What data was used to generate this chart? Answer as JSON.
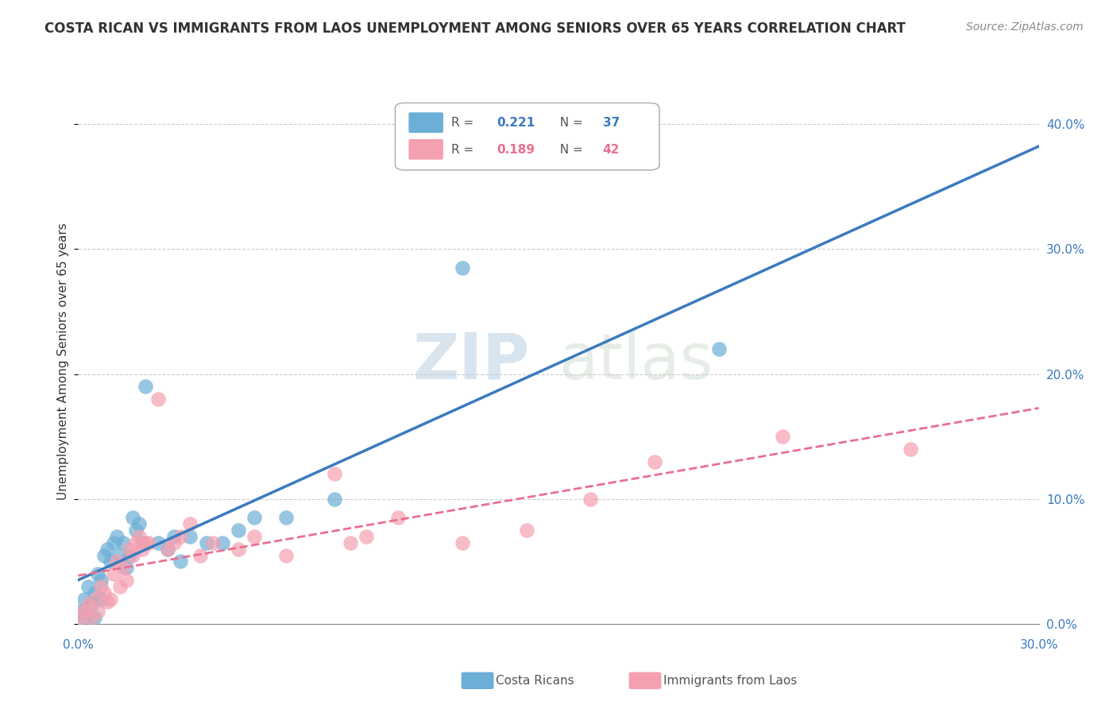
{
  "title": "COSTA RICAN VS IMMIGRANTS FROM LAOS UNEMPLOYMENT AMONG SENIORS OVER 65 YEARS CORRELATION CHART",
  "source": "Source: ZipAtlas.com",
  "ylabel": "Unemployment Among Seniors over 65 years",
  "legend_r1": "R = 0.221",
  "legend_n1": "N = 37",
  "legend_r2": "R = 0.189",
  "legend_n2": "N = 42",
  "color_blue": "#6baed6",
  "color_pink": "#f4a0b0",
  "color_blue_line": "#3a7abf",
  "color_pink_line": "#e87090",
  "watermark_zip": "ZIP",
  "watermark_atlas": "atlas",
  "blue_scatter_x": [
    0.001,
    0.002,
    0.002,
    0.003,
    0.004,
    0.005,
    0.005,
    0.006,
    0.007,
    0.007,
    0.008,
    0.009,
    0.01,
    0.011,
    0.012,
    0.013,
    0.014,
    0.015,
    0.016,
    0.017,
    0.018,
    0.019,
    0.02,
    0.021,
    0.025,
    0.028,
    0.03,
    0.032,
    0.035,
    0.04,
    0.045,
    0.05,
    0.055,
    0.065,
    0.08,
    0.12,
    0.2
  ],
  "blue_scatter_y": [
    0.01,
    0.005,
    0.02,
    0.03,
    0.015,
    0.025,
    0.005,
    0.04,
    0.02,
    0.035,
    0.055,
    0.06,
    0.05,
    0.065,
    0.07,
    0.055,
    0.065,
    0.045,
    0.055,
    0.085,
    0.075,
    0.08,
    0.065,
    0.19,
    0.065,
    0.06,
    0.07,
    0.05,
    0.07,
    0.065,
    0.065,
    0.075,
    0.085,
    0.085,
    0.1,
    0.285,
    0.22
  ],
  "pink_scatter_x": [
    0.001,
    0.002,
    0.003,
    0.004,
    0.005,
    0.006,
    0.007,
    0.008,
    0.009,
    0.01,
    0.011,
    0.012,
    0.013,
    0.014,
    0.015,
    0.016,
    0.017,
    0.018,
    0.019,
    0.02,
    0.021,
    0.022,
    0.025,
    0.028,
    0.03,
    0.032,
    0.035,
    0.038,
    0.042,
    0.05,
    0.055,
    0.065,
    0.08,
    0.085,
    0.09,
    0.1,
    0.12,
    0.14,
    0.16,
    0.18,
    0.22,
    0.26
  ],
  "pink_scatter_y": [
    0.005,
    0.01,
    0.015,
    0.005,
    0.02,
    0.01,
    0.03,
    0.025,
    0.018,
    0.02,
    0.04,
    0.05,
    0.03,
    0.045,
    0.035,
    0.06,
    0.055,
    0.065,
    0.07,
    0.06,
    0.065,
    0.065,
    0.18,
    0.06,
    0.065,
    0.07,
    0.08,
    0.055,
    0.065,
    0.06,
    0.07,
    0.055,
    0.12,
    0.065,
    0.07,
    0.085,
    0.065,
    0.075,
    0.1,
    0.13,
    0.15,
    0.14
  ],
  "xlim": [
    0.0,
    0.3
  ],
  "ylim": [
    0.0,
    0.42
  ],
  "ytick_vals": [
    0.0,
    0.1,
    0.2,
    0.3,
    0.4
  ]
}
